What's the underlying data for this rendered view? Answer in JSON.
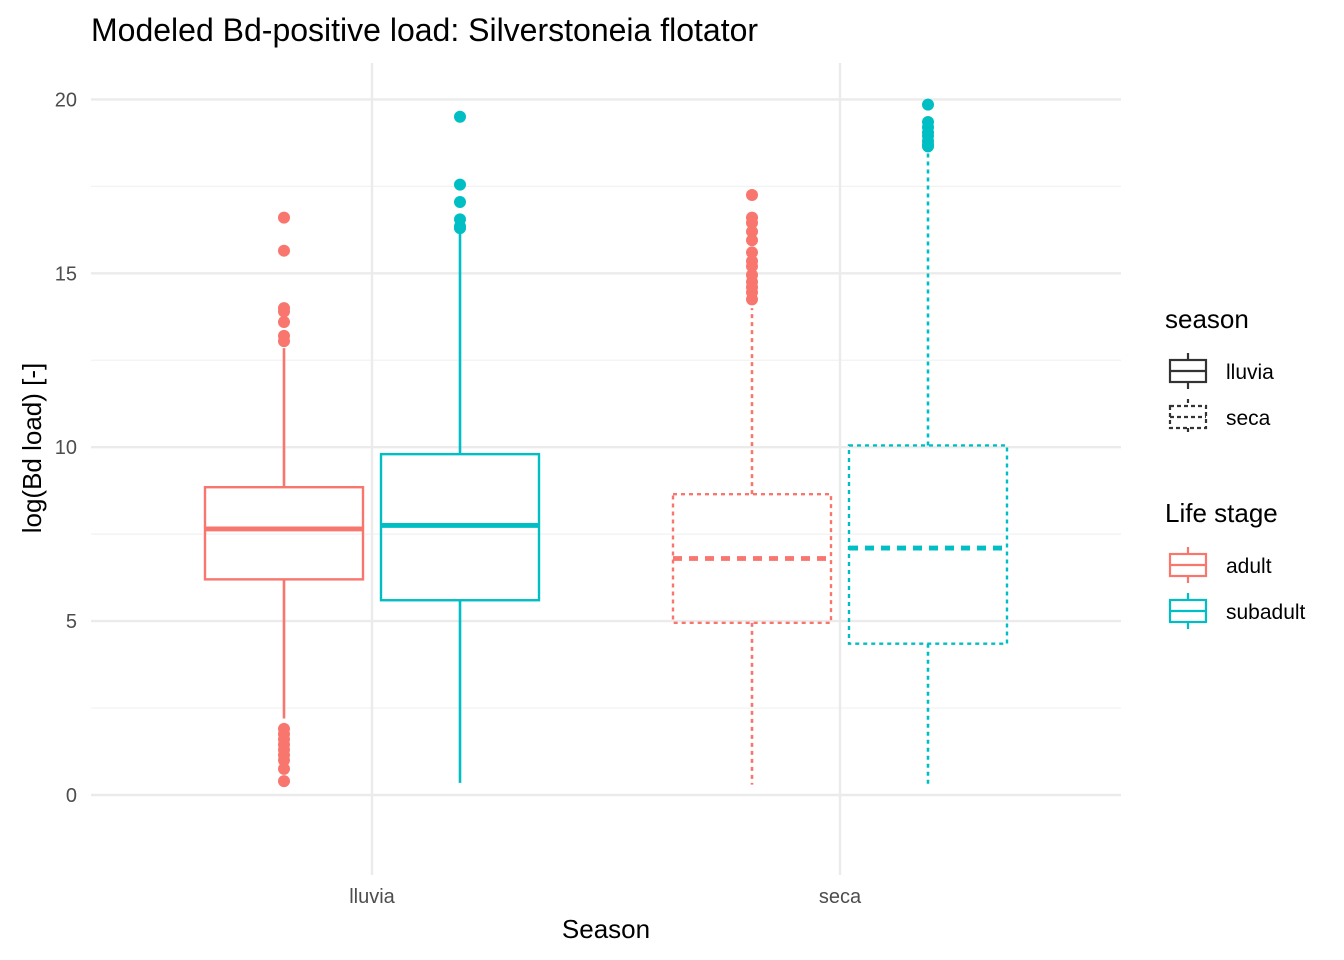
{
  "chart_data": {
    "type": "box",
    "title": "Modeled Bd-positive load: Silverstoneia flotator",
    "xlabel": "Season",
    "ylabel": "log(Bd load) [-]",
    "categories": [
      "lluvia",
      "seca"
    ],
    "ylim": [
      -2.2,
      21.1
    ],
    "yticks": [
      0,
      5,
      10,
      15,
      20
    ],
    "grid": true,
    "legend_position": "right",
    "legends": [
      {
        "title": "season",
        "entries": [
          {
            "label": "lluvia",
            "linetype": "solid"
          },
          {
            "label": "seca",
            "linetype": "dashed"
          }
        ]
      },
      {
        "title": "Life stage",
        "entries": [
          {
            "label": "adult",
            "color": "#f8766d"
          },
          {
            "label": "subadult",
            "color": "#00bfc4"
          }
        ]
      }
    ],
    "series": [
      {
        "name": "adult",
        "color": "#f8766d",
        "boxes": [
          {
            "category": "lluvia",
            "season": "lluvia",
            "whisker_low": 2.2,
            "q1": 6.2,
            "median": 7.65,
            "q3": 8.85,
            "whisker_high": 12.85,
            "outliers": [
              16.6,
              15.65,
              14.0,
              13.9,
              13.6,
              13.2,
              13.05,
              1.9,
              1.75,
              1.6,
              1.45,
              1.3,
              1.15,
              1.0,
              0.75,
              0.4
            ]
          },
          {
            "category": "seca",
            "season": "seca",
            "whisker_low": 0.3,
            "q1": 4.95,
            "median": 6.8,
            "q3": 8.65,
            "whisker_high": 14.0,
            "outliers": [
              17.25,
              16.6,
              16.45,
              16.2,
              15.95,
              15.6,
              15.35,
              15.2,
              14.95,
              14.75,
              14.6,
              14.45,
              14.25
            ]
          }
        ]
      },
      {
        "name": "subadult",
        "color": "#00bfc4",
        "boxes": [
          {
            "category": "lluvia",
            "season": "lluvia",
            "whisker_low": 0.35,
            "q1": 5.6,
            "median": 7.75,
            "q3": 9.8,
            "whisker_high": 16.2,
            "outliers": [
              19.5,
              17.55,
              17.05,
              16.55,
              16.35,
              16.3
            ]
          },
          {
            "category": "seca",
            "season": "seca",
            "whisker_low": 0.3,
            "q1": 4.35,
            "median": 7.1,
            "q3": 10.05,
            "whisker_high": 18.55,
            "outliers": [
              19.85,
              19.35,
              19.2,
              19.05,
              18.95,
              18.8,
              18.7,
              18.65
            ]
          }
        ]
      }
    ]
  }
}
